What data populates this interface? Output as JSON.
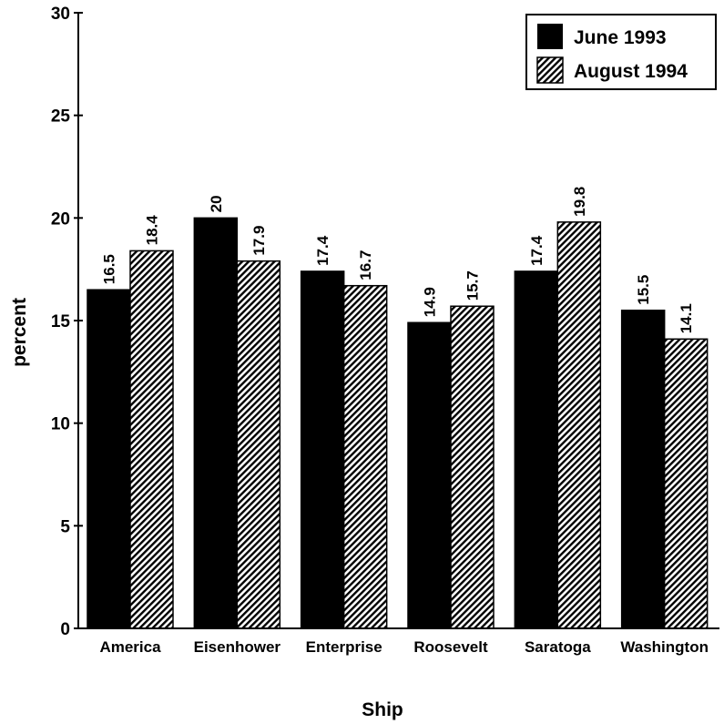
{
  "chart_data": {
    "type": "bar",
    "title": "",
    "xlabel": "Ship",
    "ylabel": "percent",
    "ylim": [
      0,
      30
    ],
    "yticks": [
      0,
      5,
      10,
      15,
      20,
      25,
      30
    ],
    "grid": false,
    "legend_position": "top-right",
    "categories": [
      "America",
      "Eisenhower",
      "Enterprise",
      "Roosevelt",
      "Saratoga",
      "Washington"
    ],
    "series": [
      {
        "name": "June 1993",
        "values": [
          16.5,
          20,
          17.4,
          14.9,
          17.4,
          15.5
        ],
        "fill": "solid",
        "color": "#000000"
      },
      {
        "name": "August 1994",
        "values": [
          18.4,
          17.9,
          16.7,
          15.7,
          19.8,
          14.1
        ],
        "fill": "hatched",
        "color": "#000000"
      }
    ]
  }
}
